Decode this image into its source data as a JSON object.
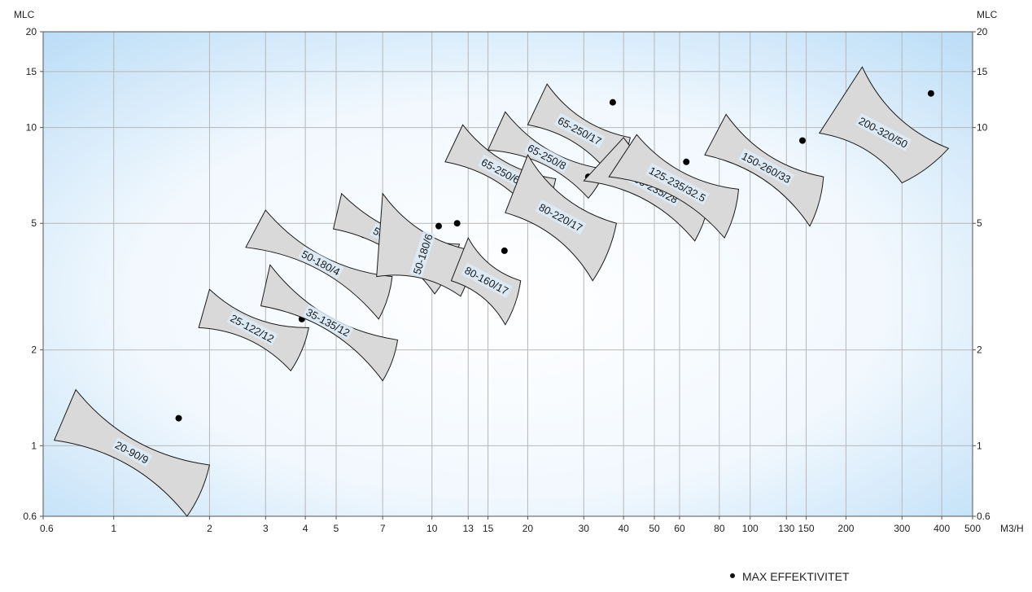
{
  "chart_data": {
    "type": "scatter",
    "x_axis_unit": "M3/H",
    "y_axis_unit_left": "MLC",
    "y_axis_unit_right": "MLC",
    "x_scale": "log",
    "y_scale": "log",
    "xlim": [
      0.6,
      500
    ],
    "ylim": [
      0.6,
      20
    ],
    "x_ticks": [
      0.6,
      1,
      2,
      3,
      4,
      5,
      7,
      10,
      13,
      15,
      20,
      30,
      40,
      50,
      60,
      80,
      100,
      130,
      150,
      200,
      300,
      400,
      500
    ],
    "x_tick_labels": [
      "0.6",
      "1",
      "2",
      "3",
      "4",
      "5",
      "7",
      "10",
      "13",
      "15",
      "20",
      "30",
      "40",
      "50",
      "60",
      "80",
      "100",
      "130",
      "150",
      "200",
      "300",
      "400",
      "500"
    ],
    "y_ticks": [
      0.6,
      1,
      2,
      5,
      10,
      15,
      20
    ],
    "y_tick_labels": [
      "0.6",
      "1",
      "2",
      "5",
      "10",
      "15",
      "20"
    ],
    "grid": true,
    "legend": {
      "label": "MAX EFFEKTIVITET",
      "placement": "bottom-right"
    },
    "series": [
      {
        "name": "20-90/9",
        "max_eff": [
          1.6,
          1.22
        ],
        "corners": [
          [
            0.76,
            1.5
          ],
          [
            2.0,
            0.87
          ],
          [
            1.7,
            0.6
          ],
          [
            0.65,
            1.04
          ]
        ]
      },
      {
        "name": "25-122/12",
        "max_eff": [
          3.9,
          2.5
        ],
        "corners": [
          [
            2.0,
            3.1
          ],
          [
            4.1,
            2.35
          ],
          [
            3.6,
            1.72
          ],
          [
            1.85,
            2.35
          ]
        ]
      },
      {
        "name": "35-135/12",
        "max_eff": [
          6.4,
          2.9
        ],
        "corners": [
          [
            3.1,
            3.7
          ],
          [
            7.8,
            2.15
          ],
          [
            7.0,
            1.6
          ],
          [
            2.9,
            2.75
          ]
        ]
      },
      {
        "name": "50-180/4",
        "max_eff": [
          6.1,
          4.6
        ],
        "corners": [
          [
            3.0,
            5.5
          ],
          [
            7.5,
            3.4
          ],
          [
            6.8,
            2.5
          ],
          [
            2.6,
            4.2
          ]
        ]
      },
      {
        "name": "50-180/8",
        "max_eff": [
          10.5,
          4.9
        ],
        "corners": [
          [
            5.2,
            6.2
          ],
          [
            12.2,
            4.3
          ],
          [
            10.2,
            3.0
          ],
          [
            4.9,
            4.8
          ]
        ]
      },
      {
        "name": "50-180/6",
        "max_eff": [
          12.0,
          5.0
        ],
        "corners": [
          [
            7.0,
            6.2
          ],
          [
            13.5,
            4.1
          ],
          [
            12.3,
            2.95
          ],
          [
            6.7,
            3.4
          ]
        ]
      },
      {
        "name": "80-160/17",
        "max_eff": [
          16.9,
          4.1
        ],
        "corners": [
          [
            13.0,
            4.5
          ],
          [
            19.0,
            3.3
          ],
          [
            17.0,
            2.4
          ],
          [
            11.5,
            3.3
          ]
        ]
      },
      {
        "name": "65-250/6",
        "max_eff": [
          21.5,
          8.4
        ],
        "corners": [
          [
            12.5,
            10.2
          ],
          [
            24.5,
            6.9
          ],
          [
            21.5,
            5.1
          ],
          [
            11.0,
            7.8
          ]
        ]
      },
      {
        "name": "65-250/8",
        "max_eff": [
          31.5,
          8.9
        ],
        "corners": [
          [
            17.0,
            11.2
          ],
          [
            35.0,
            7.4
          ],
          [
            31.0,
            6.0
          ],
          [
            15.0,
            8.5
          ]
        ]
      },
      {
        "name": "65-250/17",
        "max_eff": [
          37.0,
          12.0
        ],
        "corners": [
          [
            23.0,
            13.7
          ],
          [
            42.0,
            9.3
          ],
          [
            37.0,
            6.9
          ],
          [
            20.0,
            10.2
          ]
        ]
      },
      {
        "name": "80-220/17",
        "max_eff": [
          31.0,
          7.0
        ],
        "corners": [
          [
            20.0,
            8.2
          ],
          [
            38.0,
            5.0
          ],
          [
            32.0,
            3.3
          ],
          [
            17.0,
            5.4
          ]
        ]
      },
      {
        "name": "100-235/28",
        "max_eff": [
          63.0,
          7.8
        ],
        "corners": [
          [
            40.0,
            9.3
          ],
          [
            75.0,
            6.2
          ],
          [
            67.0,
            4.4
          ],
          [
            30.0,
            6.8
          ]
        ]
      },
      {
        "name": "125-235/32.5",
        "max_eff": [
          78.0,
          8.3
        ],
        "corners": [
          [
            44.0,
            9.5
          ],
          [
            92.0,
            6.4
          ],
          [
            83.0,
            4.5
          ],
          [
            36.0,
            7.0
          ]
        ]
      },
      {
        "name": "150-260/33",
        "max_eff": [
          146.0,
          9.1
        ],
        "corners": [
          [
            84.0,
            11.0
          ],
          [
            170.0,
            7.0
          ],
          [
            154.0,
            4.9
          ],
          [
            72.0,
            8.2
          ]
        ]
      },
      {
        "name": "200-320/50",
        "max_eff": [
          370.0,
          12.8
        ],
        "corners": [
          [
            225.0,
            15.5
          ],
          [
            420.0,
            8.6
          ],
          [
            300.0,
            6.7
          ],
          [
            165.0,
            9.6
          ]
        ]
      }
    ]
  },
  "colors": {
    "plot_bg_edge": "#b9dcf6",
    "plot_bg_center": "#ffffff",
    "envelope_fill": "#d9d9d9",
    "envelope_stroke": "#1a1a1a",
    "grid": "#b7b7b7",
    "label_bg": "#dcecfa",
    "dot": "#000000"
  }
}
